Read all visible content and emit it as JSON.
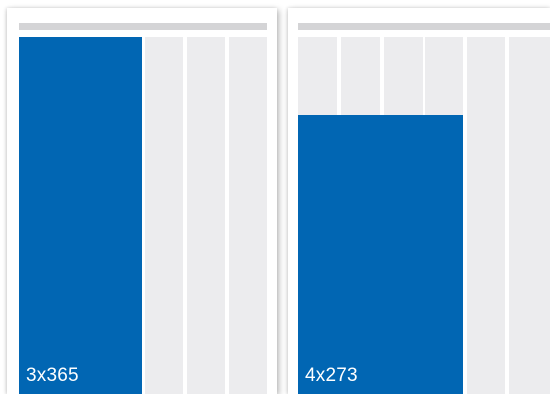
{
  "colors": {
    "background": "#ffffff",
    "header_bar": "#d4d4d6",
    "column": "#ececee",
    "ad_block": "#0166b3",
    "label_text": "#ffffff"
  },
  "pages": [
    {
      "columns": 6,
      "ad_block": {
        "label": "3x365",
        "column_span": 3,
        "height_mm": 365
      }
    },
    {
      "columns": 6,
      "ad_block": {
        "label": "4x273",
        "column_span": 4,
        "height_mm": 273
      }
    }
  ]
}
